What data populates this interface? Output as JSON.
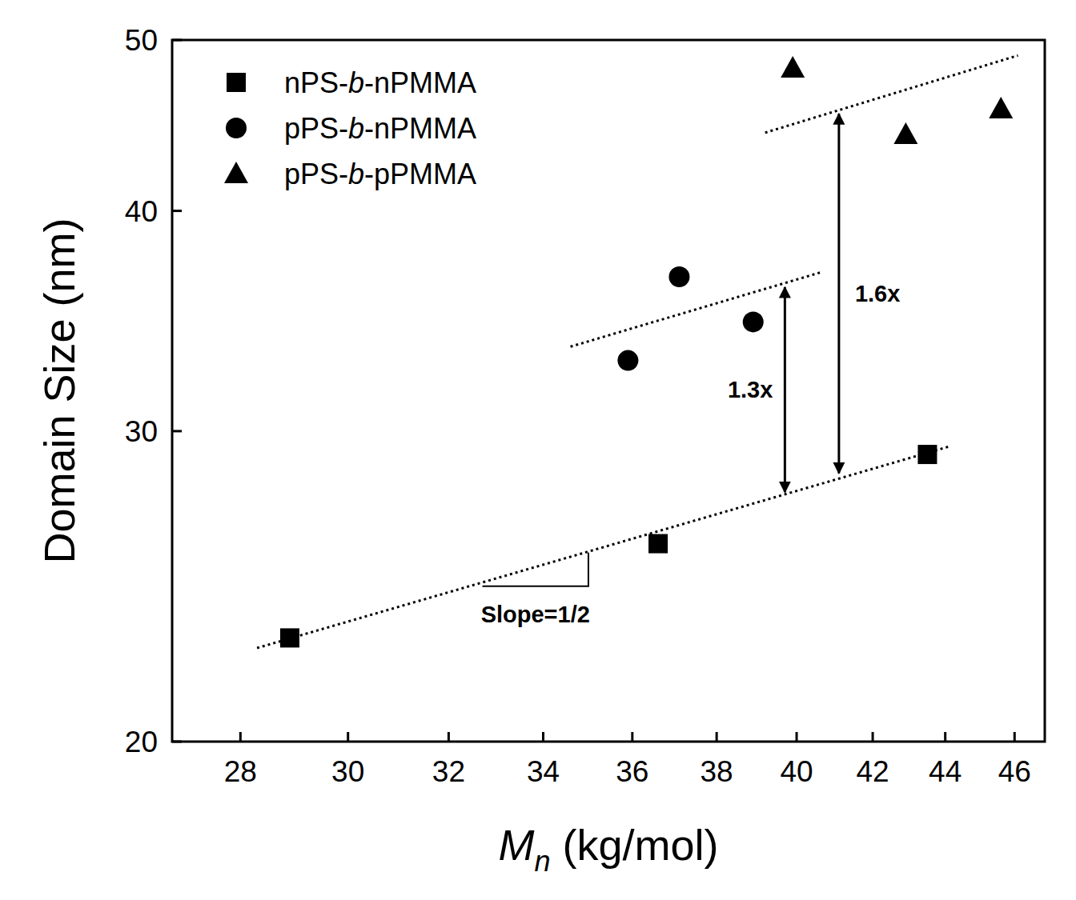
{
  "chart_data": {
    "type": "scatter",
    "log": true,
    "grid": false,
    "legend": "top-left",
    "xlabel": {
      "symbol": "M",
      "subscript": "n",
      "unit": "(kg/mol)"
    },
    "ylabel": "Domain Size (nm)",
    "xlim": [
      26.8,
      46.9
    ],
    "xticks": [
      28,
      30,
      32,
      34,
      36,
      38,
      40,
      42,
      44,
      46
    ],
    "ylim": [
      20,
      50
    ],
    "yticks": [
      20,
      30,
      40,
      50
    ],
    "series": [
      {
        "name": "nPS-b-nPMMA",
        "color": "#000000",
        "marker": "square",
        "x": [
          28.9,
          36.6,
          43.5
        ],
        "values": [
          22.9,
          25.9,
          29.1
        ],
        "fit": {
          "x": [
            28.3,
            44.1
          ],
          "y": [
            22.6,
            29.4
          ]
        }
      },
      {
        "name": "pPS-b-nPMMA",
        "color": "#000000",
        "marker": "circle",
        "x": [
          35.9,
          37.1,
          38.9
        ],
        "values": [
          32.9,
          36.7,
          34.6
        ],
        "fit": {
          "x": [
            34.6,
            40.6
          ],
          "y": [
            33.5,
            36.9
          ]
        }
      },
      {
        "name": "pPS-b-pPMMA",
        "color": "#000000",
        "marker": "triangle",
        "x": [
          39.9,
          42.9,
          45.6
        ],
        "values": [
          48.2,
          44.2,
          45.7
        ],
        "fit": {
          "x": [
            39.2,
            46.1
          ],
          "y": [
            44.3,
            49.0
          ]
        }
      }
    ],
    "annotations": [
      {
        "text": "1.3x",
        "x": [
          39.7,
          39.7
        ],
        "y": [
          36.2,
          27.7
        ]
      },
      {
        "text": "1.6x",
        "x": [
          41.1,
          41.1
        ],
        "y": [
          45.4,
          28.4
        ]
      },
      {
        "text": "Slope=1/2",
        "x": [
          32.7,
          35.0
        ],
        "y": [
          24.5,
          25.6
        ]
      }
    ]
  }
}
